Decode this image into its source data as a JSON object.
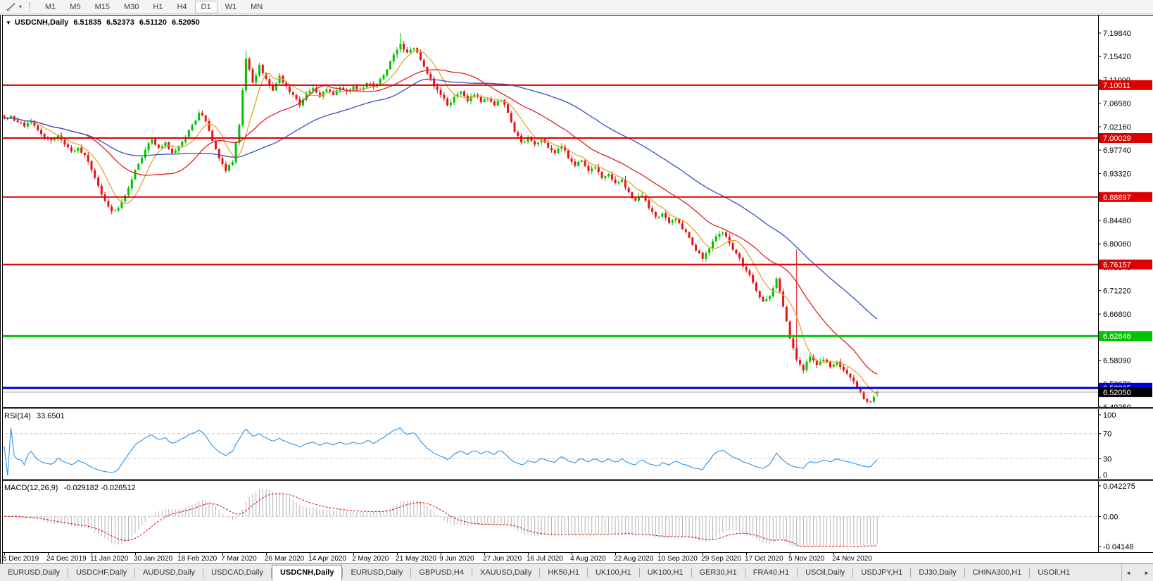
{
  "toolbar": {
    "tool_icon": "trendline-tool-icon",
    "dropdown_glyph": "▾",
    "timeframes": [
      "M1",
      "M5",
      "M15",
      "M30",
      "H1",
      "H4",
      "D1",
      "W1",
      "MN"
    ],
    "active_timeframe": "D1"
  },
  "chart": {
    "collapse_glyph": "▼",
    "title": "USDCNH,Daily",
    "quote": {
      "open": "6.51835",
      "high": "6.52373",
      "low": "6.51120",
      "close": "6.52050"
    }
  },
  "rsi": {
    "label": "RSI(14)",
    "value": "33.6501"
  },
  "macd": {
    "label": "MACD(12,26,9)",
    "values": "-0.029182 -0.026512"
  },
  "x_axis": {
    "labels": [
      "5 Dec 2019",
      "24 Dec 2019",
      "11 Jan 2020",
      "30 Jan 2020",
      "18 Feb 2020",
      "7 Mar 2020",
      "26 Mar 2020",
      "14 Apr 2020",
      "2 May 2020",
      "21 May 2020",
      "9 Jun 2020",
      "27 Jun 2020",
      "16 Jul 2020",
      "4 Aug 2020",
      "22 Aug 2020",
      "10 Sep 2020",
      "29 Sep 2020",
      "17 Oct 2020",
      "5 Nov 2020",
      "24 Nov 2020"
    ]
  },
  "tabs": {
    "items": [
      "EURUSD,Daily",
      "USDCHF,Daily",
      "AUDUSD,Daily",
      "USDCAD,Daily",
      "USDCNH,Daily",
      "EURUSD,Daily",
      "GBPUSD,H4",
      "XAUUSD,Daily",
      "HK50,H1",
      "UK100,H1",
      "UK100,H1",
      "GER30,H1",
      "FRA40,H1",
      "USOil,Daily",
      "USDJPY,H1",
      "DJ30,Daily",
      "CHINA300,H1",
      "USOil,H1"
    ],
    "active_index": 4,
    "scroll_left_glyph": "◄",
    "scroll_right_glyph": "►"
  },
  "chart_data": {
    "type": "candlestick",
    "symbol": "USDCNH",
    "timeframe": "Daily",
    "colors": {
      "bull": "#00c400",
      "bear": "#e81212",
      "rsi_line": "#3d9ae8",
      "macd_hist": "#b4b4b4",
      "macd_signal": "#dd0000",
      "dash_gray": "#c8c8c8"
    },
    "main": {
      "y_ticks": [
        "7.19840",
        "7.15420",
        "7.11000",
        "7.06580",
        "7.02160",
        "6.97740",
        "6.93320",
        "6.88900",
        "6.84480",
        "6.80060",
        "6.75640",
        "6.71220",
        "6.66800",
        "6.62380",
        "6.58090",
        "6.53670",
        "6.49250"
      ],
      "levels": [
        {
          "price": 7.10011,
          "label": "7.10011",
          "color": "#dd0000",
          "width": 2
        },
        {
          "price": 7.00029,
          "label": "7.00029",
          "color": "#dd0000",
          "width": 2
        },
        {
          "price": 6.88897,
          "label": "6.88897",
          "color": "#dd0000",
          "width": 2
        },
        {
          "price": 6.76157,
          "label": "6.76157",
          "color": "#dd0000",
          "width": 2
        },
        {
          "price": 6.62646,
          "label": "6.62646",
          "color": "#00c400",
          "width": 3
        },
        {
          "price": 6.52865,
          "label": "6.52865",
          "color": "#0000dd",
          "width": 3
        }
      ],
      "current_price": {
        "price": 6.5205,
        "label": "6.52050",
        "line_color": "#9a9a9a",
        "box_color": "#000000"
      },
      "last_bar": {
        "o": 6.51835,
        "h": 6.52373,
        "l": 6.5112,
        "c": 6.5205
      },
      "close_anchors": [
        7.038,
        7.042,
        7.03,
        7.022,
        7.032,
        7.015,
        7.002,
        6.996,
        7.005,
        6.988,
        6.975,
        6.982,
        6.968,
        6.94,
        6.91,
        6.882,
        6.862,
        6.868,
        6.892,
        6.922,
        6.952,
        6.978,
        6.998,
        6.982,
        6.992,
        6.972,
        6.985,
        7.002,
        7.025,
        7.048,
        7.032,
        6.995,
        6.962,
        6.938,
        6.955,
        7.025,
        7.15,
        7.105,
        7.138,
        7.112,
        7.09,
        7.118,
        7.098,
        7.082,
        7.062,
        7.085,
        7.095,
        7.078,
        7.092,
        7.082,
        7.096,
        7.088,
        7.098,
        7.092,
        7.104,
        7.096,
        7.112,
        7.13,
        7.158,
        7.178,
        7.162,
        7.17,
        7.148,
        7.122,
        7.098,
        7.082,
        7.062,
        7.078,
        7.088,
        7.07,
        7.082,
        7.068,
        7.075,
        7.062,
        7.072,
        7.048,
        7.012,
        6.992,
        7.002,
        6.988,
        6.998,
        6.982,
        6.972,
        6.985,
        6.962,
        6.948,
        6.958,
        6.938,
        6.945,
        6.925,
        6.932,
        6.915,
        6.922,
        6.898,
        6.882,
        6.892,
        6.868,
        6.852,
        6.858,
        6.84,
        6.848,
        6.828,
        6.812,
        6.788,
        6.772,
        6.792,
        6.815,
        6.822,
        6.802,
        6.782,
        6.758,
        6.742,
        6.712,
        6.692,
        6.702,
        6.735,
        6.682,
        6.622,
        6.582,
        6.562,
        6.588,
        6.572,
        6.582,
        6.568,
        6.578,
        6.562,
        6.548,
        6.53,
        6.508,
        6.502,
        6.5205
      ],
      "wick_extremes": [
        {
          "bar": 72,
          "high": 7.166
        },
        {
          "bar": 118,
          "high": 7.1984
        },
        {
          "bar": 236,
          "high": 6.79
        }
      ],
      "moving_averages": [
        {
          "period": 8,
          "color": "#e8a232"
        },
        {
          "period": 25,
          "color": "#dd2222"
        },
        {
          "period": 55,
          "color": "#3452c0"
        }
      ]
    },
    "rsi": {
      "period": 14,
      "axis_labels": [
        "100",
        "70",
        "30",
        "0"
      ],
      "dashed_levels": [
        70,
        30
      ],
      "last_value": 33.6501
    },
    "macd": {
      "fast": 12,
      "slow": 26,
      "signal": 9,
      "axis_labels": [
        "0.042275",
        "0.00",
        "-0.04148"
      ],
      "last_values": [
        -0.029182,
        -0.026512
      ]
    },
    "x_labels_every_n_bars": 13
  }
}
